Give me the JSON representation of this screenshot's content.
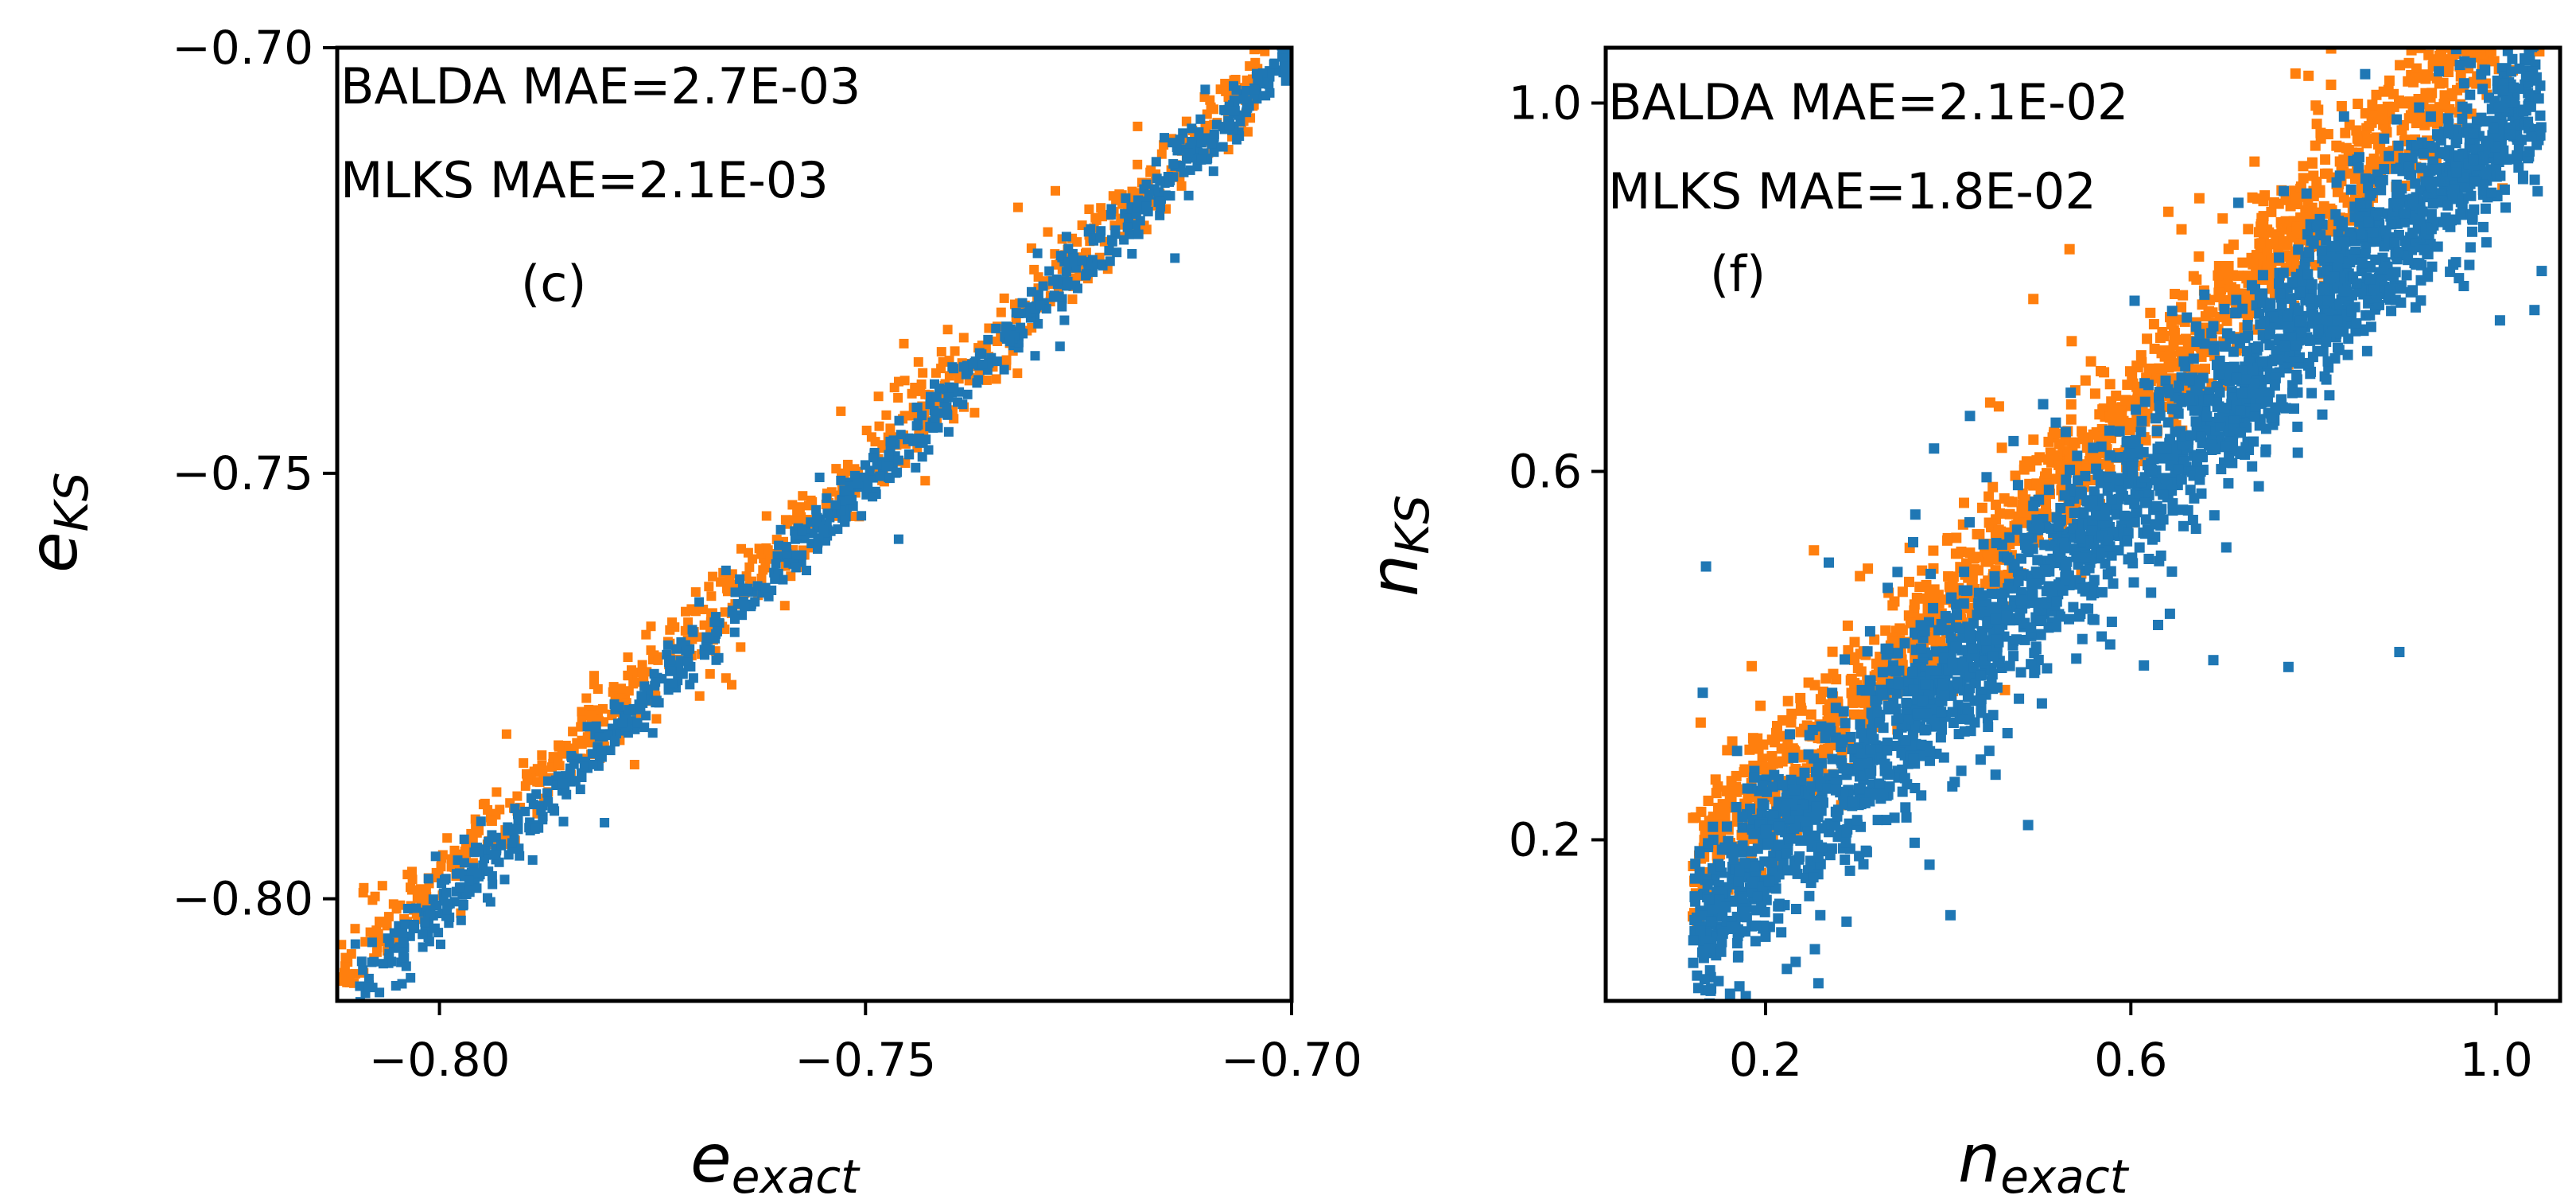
{
  "chart_data": [
    {
      "type": "scatter",
      "panel_label": "(c)",
      "title": "",
      "xlabel_main": "e",
      "xlabel_sub": "exact",
      "ylabel_main": "e",
      "ylabel_sub": "KS",
      "xlim": [
        -0.812,
        -0.7
      ],
      "ylim": [
        -0.812,
        -0.7
      ],
      "xticks": [
        -0.8,
        -0.75,
        -0.7
      ],
      "yticks": [
        -0.8,
        -0.75,
        -0.7
      ],
      "xtick_labels": [
        "−0.80",
        "−0.75",
        "−0.70"
      ],
      "ytick_labels": [
        "−0.80",
        "−0.75",
        "−0.70"
      ],
      "annotations": [
        "BALDA MAE=2.7E-03",
        "MLKS MAE=2.1E-03"
      ],
      "grid": false,
      "series": [
        {
          "name": "BALDA",
          "color": "#ff7f0e",
          "x_range": [
            -0.812,
            -0.703
          ],
          "slope": 0.965,
          "offset": 0.0015,
          "spread": 0.0022,
          "count": 700
        },
        {
          "name": "MLKS",
          "color": "#1f77b4",
          "x_range": [
            -0.81,
            -0.7
          ],
          "slope": 1.0,
          "offset": -0.001,
          "spread": 0.0016,
          "count": 800
        }
      ]
    },
    {
      "type": "scatter",
      "panel_label": "(f)",
      "title": "",
      "xlabel_main": "n",
      "xlabel_sub": "exact",
      "ylabel_main": "n",
      "ylabel_sub": "KS",
      "xlim": [
        0.025,
        1.07
      ],
      "ylim": [
        0.025,
        1.06
      ],
      "xticks": [
        0.2,
        0.6,
        1.0
      ],
      "yticks": [
        0.2,
        0.6,
        1.0
      ],
      "xtick_labels": [
        "0.2",
        "0.6",
        "1.0"
      ],
      "ytick_labels": [
        "0.2",
        "0.6",
        "1.0"
      ],
      "annotations": [
        "BALDA MAE=2.1E-02",
        "MLKS MAE=1.8E-02"
      ],
      "grid": false,
      "series": [
        {
          "name": "BALDA",
          "color": "#ff7f0e",
          "x_range": [
            0.12,
            1.05
          ],
          "slope": 1.05,
          "offset": 0.04,
          "spread": 0.035,
          "count": 1500
        },
        {
          "name": "MLKS",
          "color": "#1f77b4",
          "x_range": [
            0.12,
            1.05
          ],
          "slope": 0.98,
          "offset": -0.015,
          "spread": 0.045,
          "count": 2600
        }
      ]
    }
  ]
}
